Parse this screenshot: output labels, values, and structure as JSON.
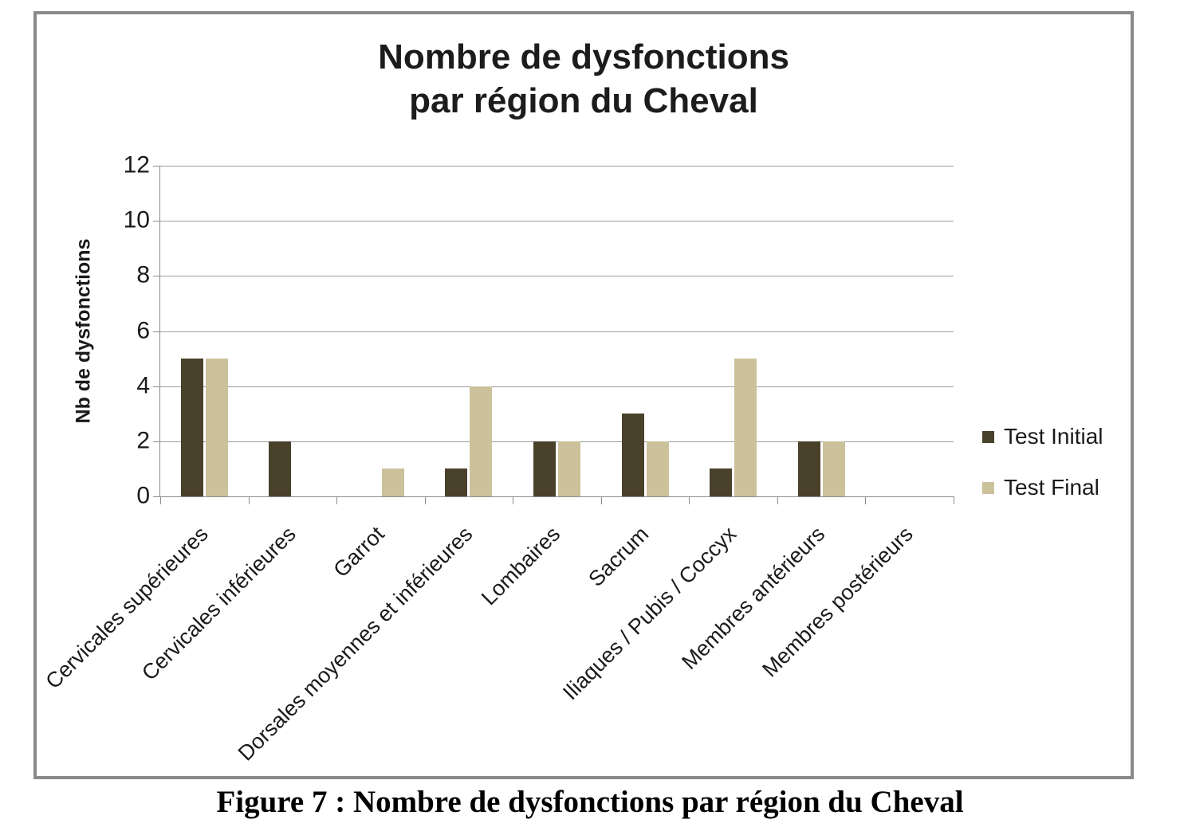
{
  "figure": {
    "title_line1": "Nombre de dysfonctions",
    "title_line2": "par région du Cheval",
    "caption": "Figure 7 : Nombre de dysfonctions par région du Cheval"
  },
  "chart_data": {
    "type": "bar",
    "title": "Nombre de dysfonctions par région du Cheval",
    "ylabel": "Nb de dysfonctions",
    "ylim": [
      0,
      12
    ],
    "ytick_step": 2,
    "grid": true,
    "legend_position": "right",
    "categories": [
      "Cervicales supérieures",
      "Cervicales inférieures",
      "Garrot",
      "Dorsales moyennes et inférieures",
      "Lombaires",
      "Sacrum",
      "Iliaques / Pubis / Coccyx",
      "Membres antérieurs",
      "Membres postérieurs"
    ],
    "series": [
      {
        "name": "Test Initial",
        "color": "#4a412b",
        "values": [
          5,
          2,
          0,
          1,
          2,
          3,
          1,
          2,
          0
        ]
      },
      {
        "name": "Test Final",
        "color": "#cbc19b",
        "values": [
          5,
          0,
          1,
          4,
          2,
          2,
          5,
          2,
          0
        ]
      }
    ]
  },
  "colors": {
    "grid": "#9c9c9c",
    "axis": "#8c8c8c",
    "frame_border": "#8a8a8a",
    "text": "#1a1a1a"
  }
}
